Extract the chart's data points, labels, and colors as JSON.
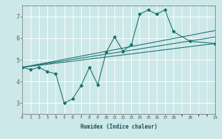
{
  "title": "",
  "xlabel": "Humidex (Indice chaleur)",
  "bg_color": "#cce8e8",
  "grid_color": "#ffffff",
  "line_color": "#1a7070",
  "xlim": [
    0,
    23
  ],
  "ylim": [
    2.5,
    7.5
  ],
  "yticks": [
    3,
    4,
    5,
    6,
    7
  ],
  "xticks": [
    0,
    1,
    2,
    3,
    4,
    5,
    6,
    7,
    8,
    9,
    10,
    11,
    12,
    13,
    14,
    15,
    16,
    17,
    18,
    20,
    23
  ],
  "main_series_x": [
    0,
    1,
    2,
    3,
    4,
    5,
    6,
    7,
    8,
    9,
    10,
    11,
    12,
    13,
    14,
    15,
    16,
    17,
    18,
    20,
    23
  ],
  "main_series_y": [
    4.65,
    4.55,
    4.65,
    4.45,
    4.35,
    3.0,
    3.2,
    3.8,
    4.65,
    3.85,
    5.35,
    6.05,
    5.4,
    5.7,
    7.1,
    7.3,
    7.1,
    7.3,
    6.3,
    5.85,
    5.75
  ],
  "upper_line_x": [
    0,
    23
  ],
  "upper_line_y": [
    4.65,
    6.35
  ],
  "lower_line_x": [
    0,
    23
  ],
  "lower_line_y": [
    4.65,
    5.75
  ],
  "mid_line_x": [
    0,
    23
  ],
  "mid_line_y": [
    4.65,
    6.05
  ]
}
